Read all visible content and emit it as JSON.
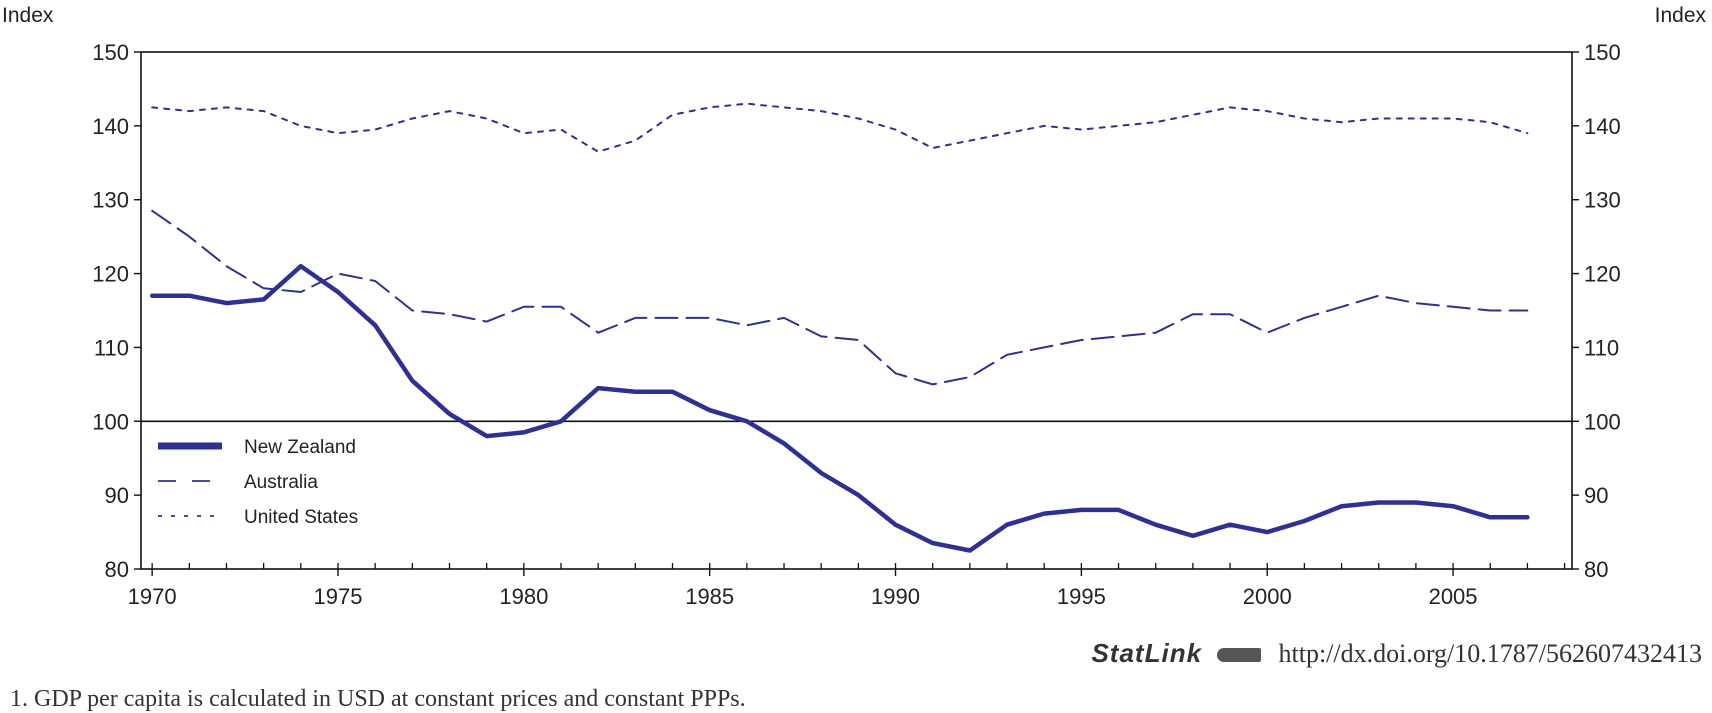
{
  "chart_data": {
    "type": "line",
    "ylabel_left": "Index",
    "ylabel_right": "Index",
    "ylim": [
      80,
      150
    ],
    "yticks": [
      80,
      90,
      100,
      110,
      120,
      130,
      140,
      150
    ],
    "xlim": [
      1969.7,
      2008.2
    ],
    "xticks": [
      1970,
      1975,
      1980,
      1985,
      1990,
      1995,
      2000,
      2005
    ],
    "reference_line": 100,
    "legend_position": "lower-left",
    "x": [
      1970,
      1971,
      1972,
      1973,
      1974,
      1975,
      1976,
      1977,
      1978,
      1979,
      1980,
      1981,
      1982,
      1983,
      1984,
      1985,
      1986,
      1987,
      1988,
      1989,
      1990,
      1991,
      1992,
      1993,
      1994,
      1995,
      1996,
      1997,
      1998,
      1999,
      2000,
      2001,
      2002,
      2003,
      2004,
      2005,
      2006,
      2007
    ],
    "series": [
      {
        "name": "New Zealand",
        "style": "solid-thick",
        "color": "#2e3192",
        "values": [
          117,
          117,
          116,
          116.5,
          121,
          117.5,
          113,
          105.5,
          101,
          98,
          98.5,
          100,
          104.5,
          104,
          104,
          101.5,
          100,
          97,
          93,
          90,
          86,
          83.5,
          82.5,
          86,
          87.5,
          88,
          88,
          86,
          84.5,
          86,
          85,
          86.5,
          88.5,
          89,
          89,
          88.5,
          87,
          87
        ]
      },
      {
        "name": "Australia",
        "style": "dashed",
        "color": "#2e3192",
        "values": [
          128.5,
          125,
          121,
          118,
          117.5,
          120,
          119,
          115,
          114.5,
          113.5,
          115.5,
          115.5,
          112,
          114,
          114,
          114,
          113,
          114,
          111.5,
          111,
          106.5,
          105,
          106,
          109,
          110,
          111,
          111.5,
          112,
          114.5,
          114.5,
          112,
          114,
          115.5,
          117,
          116,
          115.5,
          115,
          115
        ]
      },
      {
        "name": "United States",
        "style": "dotted",
        "color": "#2e3192",
        "values": [
          142.5,
          142,
          142.5,
          142,
          140,
          139,
          139.5,
          141,
          142,
          141,
          139,
          139.5,
          136.5,
          138,
          141.5,
          142.5,
          143,
          142.5,
          142,
          141,
          139.5,
          137,
          138,
          139,
          140,
          139.5,
          140,
          140.5,
          141.5,
          142.5,
          142,
          141,
          140.5,
          141,
          141,
          141,
          140.5,
          139
        ]
      }
    ]
  },
  "statlink": {
    "brand": "StatLink",
    "logo_icon": "statlink-logo-icon",
    "url": "http://dx.doi.org/10.1787/562607432413"
  },
  "footnote": "1. GDP per capita is calculated in USD at constant prices and constant PPPs."
}
